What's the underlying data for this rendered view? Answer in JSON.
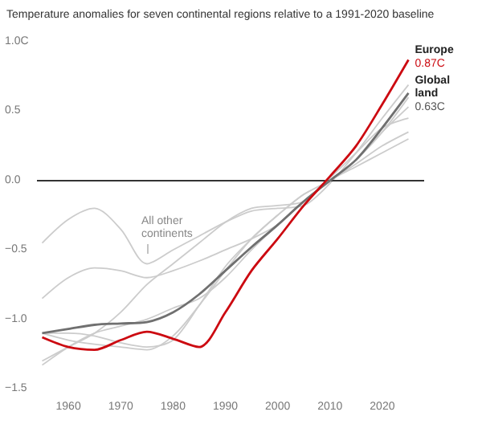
{
  "chart_data": {
    "type": "line",
    "title": "Temperature anomalies for seven continental regions relative to a 1991-2020 baseline",
    "x": [
      1955,
      1960,
      1965,
      1970,
      1975,
      1980,
      1985,
      1990,
      1995,
      2000,
      2005,
      2010,
      2015,
      2020,
      2025
    ],
    "series": [
      {
        "color": "#cccccc",
        "values": [
          -0.45,
          -0.28,
          -0.2,
          -0.35,
          -0.6,
          -0.5,
          -0.4,
          -0.3,
          -0.22,
          -0.2,
          -0.18,
          -0.02,
          0.2,
          0.45,
          0.69
        ]
      },
      {
        "color": "#cccccc",
        "values": [
          -0.85,
          -0.7,
          -0.63,
          -0.65,
          -0.7,
          -0.65,
          -0.58,
          -0.5,
          -0.42,
          -0.32,
          -0.15,
          0.0,
          0.15,
          0.35,
          0.53
        ]
      },
      {
        "color": "#cccccc",
        "values": [
          -1.3,
          -1.2,
          -1.1,
          -0.95,
          -0.75,
          -0.6,
          -0.45,
          -0.3,
          -0.2,
          -0.18,
          -0.15,
          0.02,
          0.2,
          0.38,
          0.45
        ]
      },
      {
        "color": "#cccccc",
        "values": [
          -1.1,
          -1.1,
          -1.12,
          -1.17,
          -1.2,
          -1.15,
          -0.9,
          -0.62,
          -0.42,
          -0.25,
          -0.1,
          0.0,
          0.12,
          0.25,
          0.35
        ]
      },
      {
        "color": "#cccccc",
        "values": [
          -1.33,
          -1.2,
          -1.1,
          -1.05,
          -1.0,
          -0.92,
          -0.85,
          -0.7,
          -0.5,
          -0.32,
          -0.15,
          0.0,
          0.1,
          0.2,
          0.3
        ]
      },
      {
        "color": "#cccccc",
        "values": [
          -1.1,
          -1.15,
          -1.18,
          -1.2,
          -1.22,
          -1.12,
          -0.9,
          -0.65,
          -0.42,
          -0.25,
          -0.1,
          0.0,
          0.15,
          0.35,
          0.6
        ]
      },
      {
        "name": "Global land",
        "color": "#707070",
        "values": [
          -1.1,
          -1.07,
          -1.04,
          -1.03,
          -1.02,
          -0.95,
          -0.82,
          -0.65,
          -0.48,
          -0.32,
          -0.15,
          0.0,
          0.15,
          0.38,
          0.63
        ],
        "value_labels": [
          null,
          null,
          null,
          null,
          null,
          null,
          null,
          null,
          null,
          null,
          null,
          null,
          null,
          null,
          "0.63C"
        ]
      },
      {
        "name": "Europe",
        "color": "#cc0a11",
        "values": [
          -1.13,
          -1.2,
          -1.22,
          -1.15,
          -1.09,
          -1.14,
          -1.2,
          -0.95,
          -0.65,
          -0.42,
          -0.18,
          0.03,
          0.25,
          0.55,
          0.87
        ],
        "value_labels": [
          null,
          null,
          null,
          null,
          null,
          null,
          null,
          null,
          null,
          null,
          null,
          null,
          null,
          null,
          "0.87C"
        ]
      }
    ],
    "annotations": [
      "All other continents"
    ],
    "xlim": [
      1954,
      2028
    ],
    "xticks": [
      1960,
      1970,
      1980,
      1990,
      2000,
      2010,
      2020
    ],
    "ylim": [
      -1.5,
      1.0
    ],
    "yticks": [
      {
        "value": 1.0,
        "label": "1.0C"
      },
      {
        "value": 0.5,
        "label": "0.5"
      },
      {
        "value": 0.0,
        "label": "0.0"
      },
      {
        "value": -0.5,
        "label": "−0.5"
      },
      {
        "value": -1.0,
        "label": "−1.0"
      },
      {
        "value": -1.5,
        "label": "−1.5"
      }
    ],
    "ref_lines": [
      {
        "axis": "y",
        "value": 0,
        "color": "#333333"
      }
    ],
    "grid": false,
    "legend": false,
    "marker": "none",
    "line_style": "solid"
  }
}
